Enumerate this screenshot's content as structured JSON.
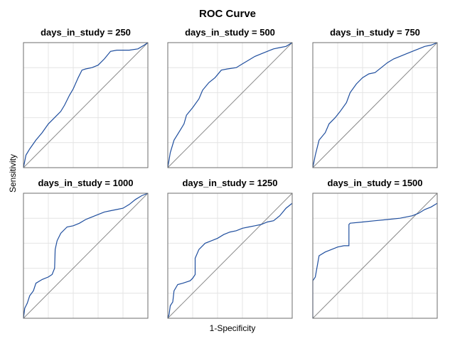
{
  "chart_data": {
    "type": "line",
    "title": "ROC Curve",
    "xlabel": "1-Specificity",
    "ylabel": "Sensitivity",
    "xlim": [
      0,
      1
    ],
    "ylim": [
      0,
      1
    ],
    "grid": true,
    "reference_line": "diagonal",
    "line_color": "#1f4e9e",
    "reference_color": "#8a8a8a",
    "panels": [
      {
        "title": "days_in_study = 250",
        "points": [
          [
            0,
            0
          ],
          [
            0.02,
            0.1
          ],
          [
            0.05,
            0.15
          ],
          [
            0.1,
            0.22
          ],
          [
            0.15,
            0.28
          ],
          [
            0.2,
            0.35
          ],
          [
            0.25,
            0.4
          ],
          [
            0.3,
            0.45
          ],
          [
            0.33,
            0.5
          ],
          [
            0.37,
            0.58
          ],
          [
            0.4,
            0.63
          ],
          [
            0.44,
            0.72
          ],
          [
            0.47,
            0.78
          ],
          [
            0.5,
            0.79
          ],
          [
            0.55,
            0.8
          ],
          [
            0.6,
            0.82
          ],
          [
            0.65,
            0.87
          ],
          [
            0.7,
            0.93
          ],
          [
            0.75,
            0.94
          ],
          [
            0.85,
            0.94
          ],
          [
            0.92,
            0.95
          ],
          [
            0.97,
            0.98
          ],
          [
            1,
            1
          ]
        ]
      },
      {
        "title": "days_in_study = 500",
        "points": [
          [
            0,
            0
          ],
          [
            0.02,
            0.12
          ],
          [
            0.05,
            0.22
          ],
          [
            0.1,
            0.3
          ],
          [
            0.13,
            0.35
          ],
          [
            0.15,
            0.42
          ],
          [
            0.2,
            0.48
          ],
          [
            0.25,
            0.55
          ],
          [
            0.28,
            0.62
          ],
          [
            0.33,
            0.68
          ],
          [
            0.38,
            0.72
          ],
          [
            0.43,
            0.78
          ],
          [
            0.48,
            0.79
          ],
          [
            0.55,
            0.8
          ],
          [
            0.6,
            0.83
          ],
          [
            0.65,
            0.86
          ],
          [
            0.7,
            0.89
          ],
          [
            0.75,
            0.91
          ],
          [
            0.8,
            0.93
          ],
          [
            0.85,
            0.95
          ],
          [
            0.9,
            0.96
          ],
          [
            0.95,
            0.97
          ],
          [
            1,
            1
          ]
        ]
      },
      {
        "title": "days_in_study = 750",
        "points": [
          [
            0,
            0
          ],
          [
            0.02,
            0.1
          ],
          [
            0.05,
            0.22
          ],
          [
            0.1,
            0.28
          ],
          [
            0.13,
            0.35
          ],
          [
            0.18,
            0.4
          ],
          [
            0.22,
            0.45
          ],
          [
            0.27,
            0.52
          ],
          [
            0.3,
            0.6
          ],
          [
            0.35,
            0.67
          ],
          [
            0.4,
            0.72
          ],
          [
            0.45,
            0.75
          ],
          [
            0.5,
            0.76
          ],
          [
            0.55,
            0.8
          ],
          [
            0.6,
            0.84
          ],
          [
            0.65,
            0.87
          ],
          [
            0.7,
            0.89
          ],
          [
            0.75,
            0.91
          ],
          [
            0.8,
            0.93
          ],
          [
            0.85,
            0.95
          ],
          [
            0.9,
            0.97
          ],
          [
            0.95,
            0.98
          ],
          [
            1,
            1
          ]
        ]
      },
      {
        "title": "days_in_study = 1000",
        "points": [
          [
            0,
            0
          ],
          [
            0.01,
            0.08
          ],
          [
            0.03,
            0.12
          ],
          [
            0.05,
            0.18
          ],
          [
            0.08,
            0.22
          ],
          [
            0.1,
            0.28
          ],
          [
            0.15,
            0.31
          ],
          [
            0.2,
            0.33
          ],
          [
            0.23,
            0.35
          ],
          [
            0.25,
            0.4
          ],
          [
            0.255,
            0.55
          ],
          [
            0.27,
            0.62
          ],
          [
            0.3,
            0.68
          ],
          [
            0.35,
            0.73
          ],
          [
            0.4,
            0.74
          ],
          [
            0.45,
            0.76
          ],
          [
            0.5,
            0.79
          ],
          [
            0.55,
            0.81
          ],
          [
            0.6,
            0.83
          ],
          [
            0.65,
            0.85
          ],
          [
            0.7,
            0.86
          ],
          [
            0.75,
            0.87
          ],
          [
            0.8,
            0.88
          ],
          [
            0.85,
            0.91
          ],
          [
            0.9,
            0.95
          ],
          [
            0.95,
            0.98
          ],
          [
            1,
            1
          ]
        ]
      },
      {
        "title": "days_in_study = 1250",
        "points": [
          [
            0,
            0
          ],
          [
            0.01,
            0.03
          ],
          [
            0.02,
            0.1
          ],
          [
            0.04,
            0.13
          ],
          [
            0.05,
            0.22
          ],
          [
            0.08,
            0.27
          ],
          [
            0.12,
            0.28
          ],
          [
            0.18,
            0.3
          ],
          [
            0.2,
            0.32
          ],
          [
            0.22,
            0.35
          ],
          [
            0.22,
            0.48
          ],
          [
            0.25,
            0.55
          ],
          [
            0.3,
            0.6
          ],
          [
            0.35,
            0.62
          ],
          [
            0.4,
            0.64
          ],
          [
            0.45,
            0.67
          ],
          [
            0.5,
            0.69
          ],
          [
            0.55,
            0.7
          ],
          [
            0.6,
            0.72
          ],
          [
            0.65,
            0.73
          ],
          [
            0.7,
            0.74
          ],
          [
            0.75,
            0.75
          ],
          [
            0.8,
            0.77
          ],
          [
            0.85,
            0.78
          ],
          [
            0.9,
            0.82
          ],
          [
            0.95,
            0.88
          ],
          [
            1,
            0.92
          ]
        ]
      },
      {
        "title": "days_in_study = 1500",
        "points": [
          [
            0,
            0
          ],
          [
            0,
            0.3
          ],
          [
            0.02,
            0.33
          ],
          [
            0.05,
            0.5
          ],
          [
            0.1,
            0.53
          ],
          [
            0.15,
            0.55
          ],
          [
            0.2,
            0.57
          ],
          [
            0.25,
            0.58
          ],
          [
            0.29,
            0.58
          ],
          [
            0.29,
            0.75
          ],
          [
            0.3,
            0.76
          ],
          [
            0.4,
            0.77
          ],
          [
            0.5,
            0.78
          ],
          [
            0.6,
            0.79
          ],
          [
            0.7,
            0.8
          ],
          [
            0.8,
            0.82
          ],
          [
            0.85,
            0.84
          ],
          [
            0.9,
            0.87
          ],
          [
            0.95,
            0.89
          ],
          [
            1,
            0.92
          ]
        ]
      }
    ]
  }
}
